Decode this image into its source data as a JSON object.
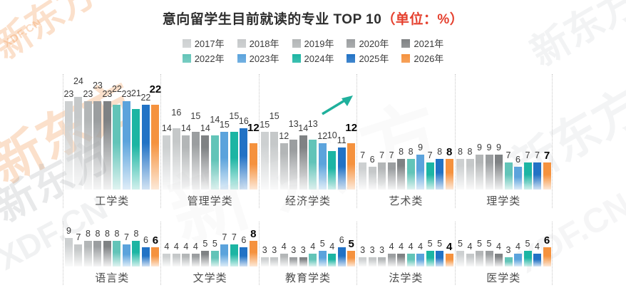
{
  "title": {
    "main": "意向留学生目前就读的专业 TOP 10",
    "unit": "（单位：%）"
  },
  "legend": {
    "years": [
      "2017年",
      "2018年",
      "2019年",
      "2020年",
      "2021年",
      "2022年",
      "2023年",
      "2024年",
      "2025年",
      "2026年"
    ],
    "colors": [
      "#cdd0d1",
      "#c5c8c9",
      "#b3b6b7",
      "#9b9ea0",
      "#7f8284",
      "#62c4b8",
      "#5ba3dc",
      "#1cb5a3",
      "#2172c5",
      "#f5923e"
    ]
  },
  "watermark": {
    "brand": "新东方",
    "site": "XDF.CN"
  },
  "chart_data": {
    "type": "bar",
    "title": "意向留学生目前就读的专业 TOP 10",
    "unit": "%",
    "legend_position": "top",
    "grid": false,
    "series_labels": [
      "2017年",
      "2018年",
      "2019年",
      "2020年",
      "2021年",
      "2022年",
      "2023年",
      "2024年",
      "2025年",
      "2026年"
    ],
    "series_colors": [
      "#cdd0d1",
      "#c5c8c9",
      "#b3b6b7",
      "#9b9ea0",
      "#7f8284",
      "#62c4b8",
      "#5ba3dc",
      "#1cb5a3",
      "#2172c5",
      "#f5923e"
    ],
    "highlight_last_series": "2026年",
    "groups": [
      {
        "category": "工学类",
        "row": 1,
        "values": [
          23,
          24,
          23,
          23,
          23,
          22,
          23,
          21,
          22,
          22
        ]
      },
      {
        "category": "管理学类",
        "row": 1,
        "values": [
          14,
          16,
          14,
          15,
          14,
          14,
          15,
          15,
          16,
          12
        ]
      },
      {
        "category": "经济学类",
        "row": 1,
        "values": [
          15,
          15,
          12,
          13,
          14,
          13,
          12,
          10,
          11,
          12
        ],
        "trend_arrow": true
      },
      {
        "category": "艺术类",
        "row": 1,
        "values": [
          7,
          6,
          7,
          7,
          8,
          8,
          9,
          7,
          8,
          8
        ]
      },
      {
        "category": "理学类",
        "row": 1,
        "values": [
          8,
          8,
          9,
          9,
          9,
          7,
          6,
          7,
          7,
          7
        ]
      },
      {
        "category": "语言类",
        "row": 2,
        "values": [
          9,
          7,
          8,
          8,
          8,
          8,
          7,
          8,
          6,
          6
        ]
      },
      {
        "category": "文学类",
        "row": 2,
        "values": [
          4,
          4,
          4,
          4,
          5,
          5,
          7,
          7,
          6,
          8
        ]
      },
      {
        "category": "教育学类",
        "row": 2,
        "values": [
          3,
          3,
          4,
          3,
          3,
          4,
          5,
          4,
          6,
          5
        ]
      },
      {
        "category": "法学类",
        "row": 2,
        "values": [
          3,
          3,
          3,
          4,
          4,
          4,
          4,
          5,
          5,
          4
        ]
      },
      {
        "category": "医学类",
        "row": 2,
        "values": [
          5,
          4,
          5,
          5,
          4,
          3,
          4,
          5,
          4,
          6
        ]
      }
    ],
    "arrow_color": "#1fb09c"
  }
}
